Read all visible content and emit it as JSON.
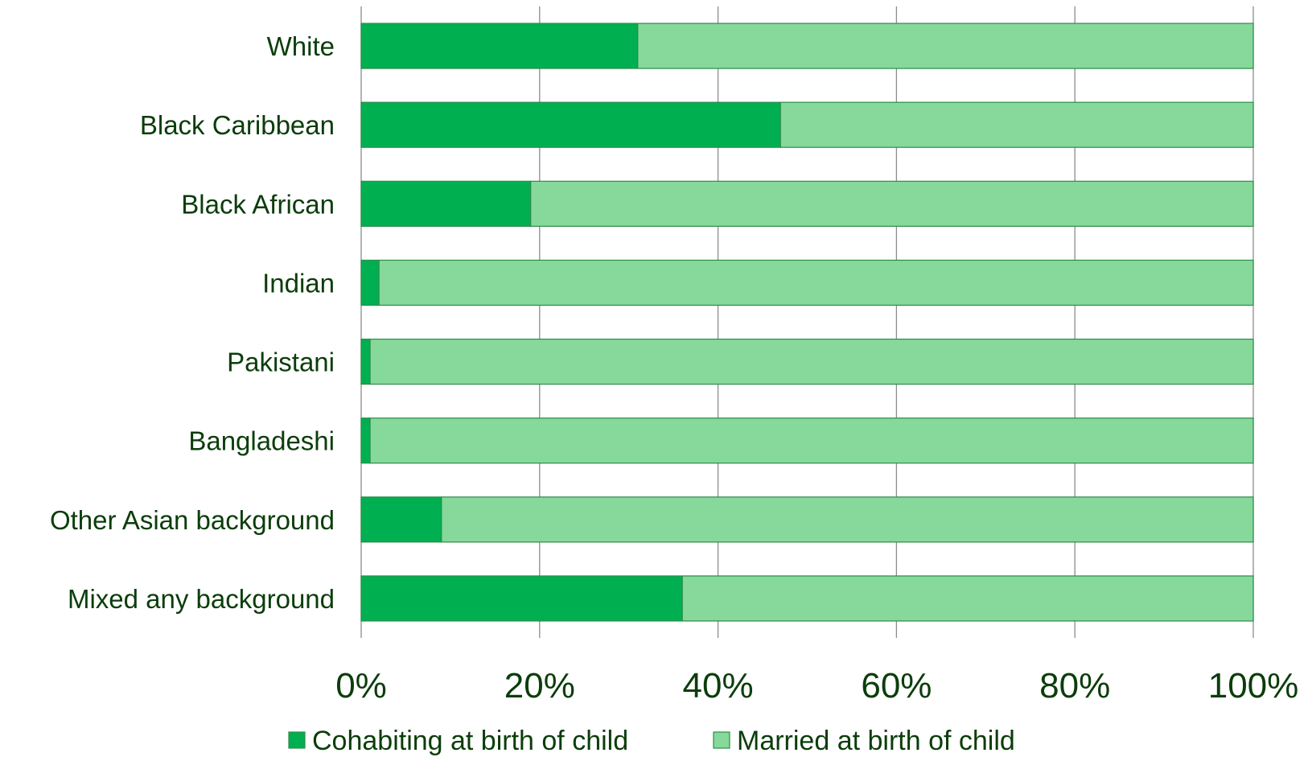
{
  "chart_data": {
    "type": "bar",
    "orientation": "horizontal",
    "stacked": "percent",
    "title": "",
    "xlabel": "",
    "ylabel": "",
    "categories": [
      "White",
      "Black Caribbean",
      "Black African",
      "Indian",
      "Pakistani",
      "Bangladeshi",
      "Other Asian background",
      "Mixed any background"
    ],
    "series": [
      {
        "name": "Cohabiting at birth of child",
        "color": "#00b050",
        "values": [
          31,
          47,
          19,
          2,
          1,
          1,
          9,
          36
        ]
      },
      {
        "name": "Married at birth of child",
        "color": "#86d99b",
        "values": [
          69,
          53,
          81,
          98,
          99,
          99,
          91,
          64
        ]
      }
    ],
    "xlim": [
      0,
      100
    ],
    "xticks": [
      "0%",
      "20%",
      "40%",
      "60%",
      "80%",
      "100%"
    ],
    "grid": true,
    "legend_position": "bottom"
  }
}
